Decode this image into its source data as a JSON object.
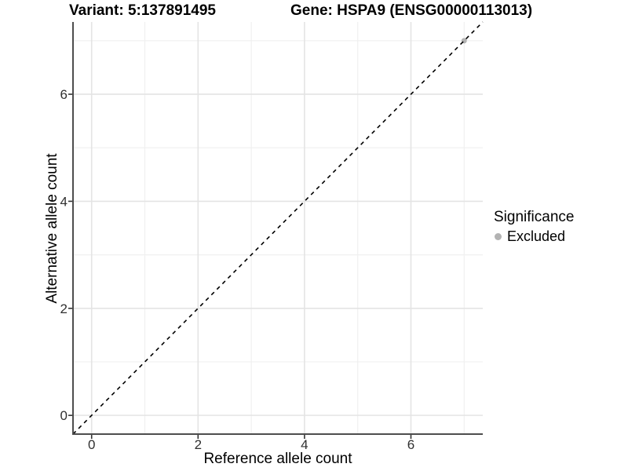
{
  "chart_data": {
    "type": "scatter",
    "title_variant": "Variant: 5:137891495",
    "title_gene": "Gene: HSPA9 (ENSG00000113013)",
    "xlabel": "Reference allele count",
    "ylabel": "Alternative allele count",
    "xlim": [
      -0.35,
      7.35
    ],
    "ylim": [
      -0.35,
      7.35
    ],
    "x_ticks": [
      0,
      2,
      4,
      6
    ],
    "y_ticks": [
      0,
      2,
      4,
      6
    ],
    "x_minor_gridlines": [
      1,
      3,
      5,
      7
    ],
    "y_minor_gridlines": [
      1,
      3,
      5,
      7
    ],
    "grid": "on",
    "points": [
      {
        "x": 7,
        "y": 7,
        "series": "Excluded"
      }
    ],
    "reference_line": {
      "slope": 1,
      "intercept": 0,
      "style": "dashed"
    },
    "legend": {
      "position": "right",
      "title": "Significance",
      "items": [
        {
          "label": "Excluded",
          "color": "#b3b3b3"
        }
      ]
    },
    "colors": {
      "background": "#ffffff",
      "grid_major": "#e4e4e4",
      "grid_minor": "#f0f0f0",
      "axis_line": "#4d4d4d",
      "tick_mark": "#333333",
      "tick_text": "#303030",
      "title_text": "#000000",
      "reference_line": "#000000",
      "point": "#b3b3b3"
    }
  }
}
